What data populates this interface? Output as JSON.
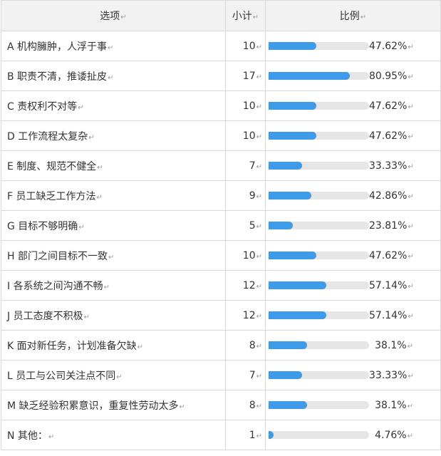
{
  "header": {
    "option": "选项",
    "count": "小计",
    "ratio": "比例"
  },
  "paragraph_mark": "↵",
  "bar_color": "#3d9be9",
  "rows": [
    {
      "option": "A 机构臃肿，人浮于事",
      "count": "10",
      "percent": "47.62%",
      "fraction": 0.4762
    },
    {
      "option": "B 职责不清，推诿扯皮",
      "count": "17",
      "percent": "80.95%",
      "fraction": 0.8095
    },
    {
      "option": "C 责权利不对等",
      "count": "10",
      "percent": "47.62%",
      "fraction": 0.4762
    },
    {
      "option": "D 工作流程太复杂",
      "count": "10",
      "percent": "47.62%",
      "fraction": 0.4762
    },
    {
      "option": "E 制度、规范不健全",
      "count": "7",
      "percent": "33.33%",
      "fraction": 0.3333
    },
    {
      "option": "F 员工缺乏工作方法",
      "count": "9",
      "percent": "42.86%",
      "fraction": 0.4286
    },
    {
      "option": "G 目标不够明确",
      "count": "5",
      "percent": "23.81%",
      "fraction": 0.2381
    },
    {
      "option": "H 部门之间目标不一致",
      "count": "10",
      "percent": "47.62%",
      "fraction": 0.4762
    },
    {
      "option": "I 各系统之间沟通不畅",
      "count": "12",
      "percent": "57.14%",
      "fraction": 0.5714
    },
    {
      "option": "J 员工态度不积极",
      "count": "12",
      "percent": "57.14%",
      "fraction": 0.5714
    },
    {
      "option": "K 面对新任务，计划准备欠缺",
      "count": "8",
      "percent": "38.1%",
      "fraction": 0.381
    },
    {
      "option": "L 员工与公司关注点不同",
      "count": "7",
      "percent": "33.33%",
      "fraction": 0.3333
    },
    {
      "option": "M 缺乏经验积累意识，重复性劳动太多",
      "count": "8",
      "percent": "38.1%",
      "fraction": 0.381
    },
    {
      "option": "N 其他：",
      "count": "1",
      "percent": "4.76%",
      "fraction": 0.0476
    }
  ]
}
